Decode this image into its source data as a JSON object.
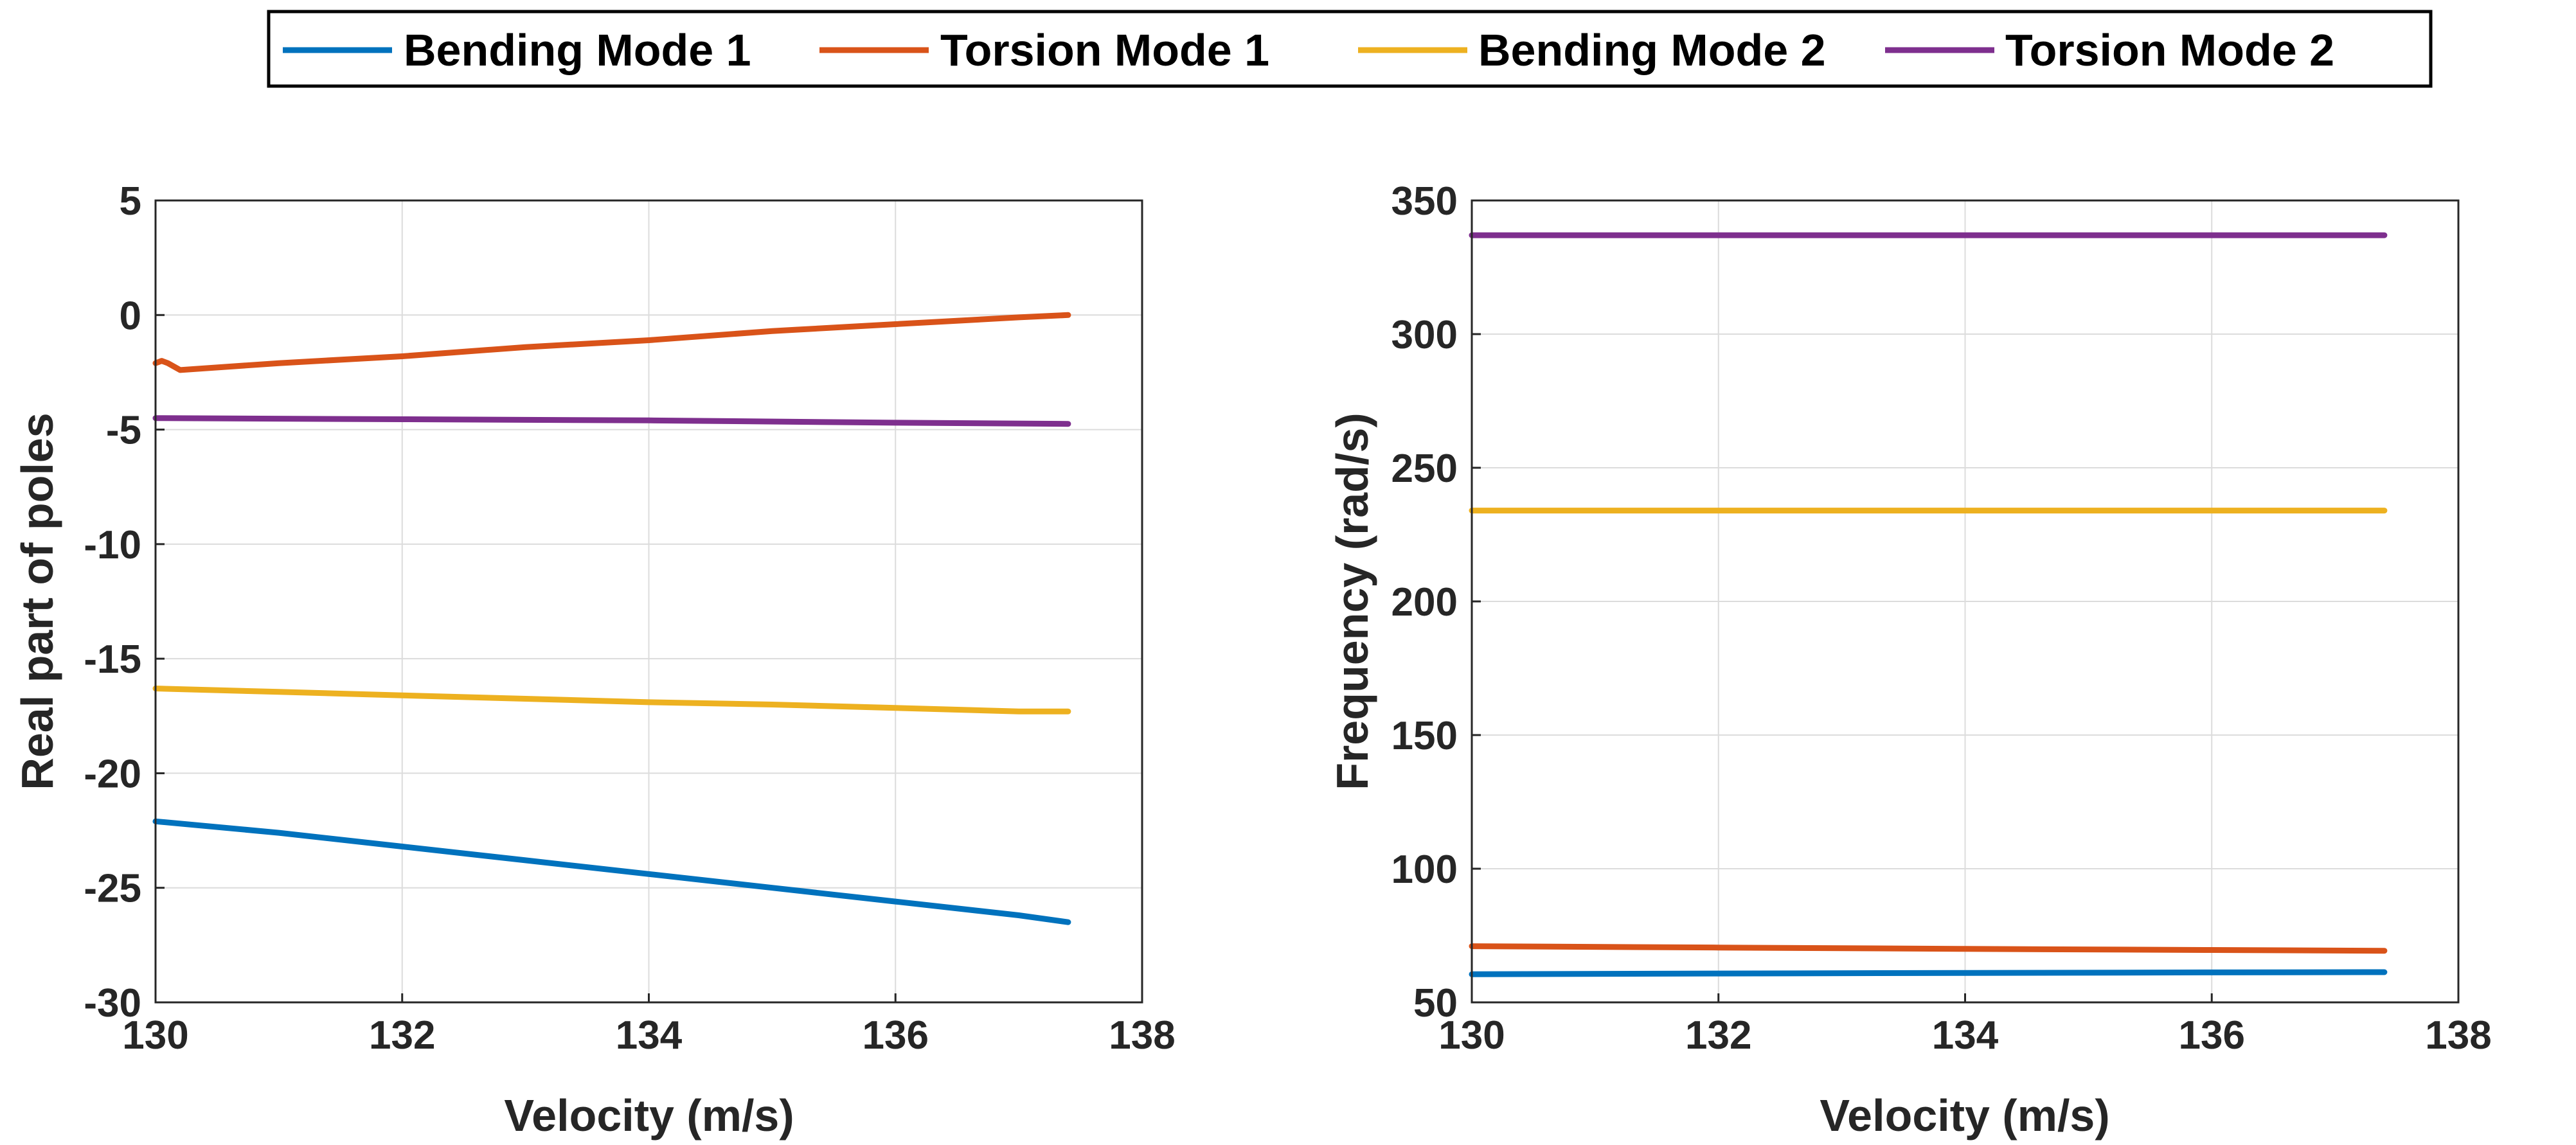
{
  "legend": {
    "entries": [
      {
        "name": "Bending Mode 1",
        "color": "#0072BD"
      },
      {
        "name": "Torsion Mode 1",
        "color": "#D95319"
      },
      {
        "name": "Bending Mode 2",
        "color": "#EDB120"
      },
      {
        "name": "Torsion Mode 2",
        "color": "#7E2F8E"
      }
    ]
  },
  "chart_data": [
    {
      "type": "line",
      "xlabel": "Velocity (m/s)",
      "ylabel": "Real part of poles",
      "xlim": [
        130,
        138
      ],
      "ylim": [
        -30,
        5
      ],
      "xticks": [
        130,
        132,
        134,
        136,
        138
      ],
      "yticks": [
        -30,
        -25,
        -20,
        -15,
        -10,
        -5,
        0,
        5
      ],
      "grid": true,
      "series": [
        {
          "name": "Bending Mode 1",
          "color": "#0072BD",
          "x": [
            130,
            131,
            132,
            133,
            134,
            135,
            136,
            137,
            137.4
          ],
          "y": [
            -22.1,
            -22.6,
            -23.2,
            -23.8,
            -24.4,
            -25.0,
            -25.6,
            -26.2,
            -26.5
          ]
        },
        {
          "name": "Torsion Mode 1",
          "color": "#D95319",
          "x": [
            130,
            130.05,
            130.1,
            130.2,
            131,
            132,
            133,
            134,
            135,
            136,
            137,
            137.4
          ],
          "y": [
            -2.1,
            -2.0,
            -2.1,
            -2.4,
            -2.1,
            -1.8,
            -1.4,
            -1.1,
            -0.7,
            -0.4,
            -0.1,
            0.0
          ]
        },
        {
          "name": "Bending Mode 2",
          "color": "#EDB120",
          "x": [
            130,
            131,
            132,
            133,
            134,
            135,
            136,
            137,
            137.4
          ],
          "y": [
            -16.3,
            -16.45,
            -16.6,
            -16.75,
            -16.9,
            -17.0,
            -17.15,
            -17.3,
            -17.3
          ]
        },
        {
          "name": "Torsion Mode 2",
          "color": "#7E2F8E",
          "x": [
            130,
            132,
            134,
            136,
            137.4
          ],
          "y": [
            -4.5,
            -4.55,
            -4.6,
            -4.7,
            -4.75
          ]
        }
      ]
    },
    {
      "type": "line",
      "xlabel": "Velocity (m/s)",
      "ylabel": "Frequency (rad/s)",
      "xlim": [
        130,
        138
      ],
      "ylim": [
        50,
        350
      ],
      "xticks": [
        130,
        132,
        134,
        136,
        138
      ],
      "yticks": [
        50,
        100,
        150,
        200,
        250,
        300,
        350
      ],
      "grid": true,
      "series": [
        {
          "name": "Bending Mode 1",
          "color": "#0072BD",
          "x": [
            130,
            132,
            134,
            136,
            137.4
          ],
          "y": [
            60.5,
            60.8,
            61.0,
            61.2,
            61.3
          ]
        },
        {
          "name": "Torsion Mode 1",
          "color": "#D95319",
          "x": [
            130,
            132,
            134,
            136,
            137.4
          ],
          "y": [
            71.0,
            70.5,
            70.0,
            69.6,
            69.3
          ]
        },
        {
          "name": "Bending Mode 2",
          "color": "#EDB120",
          "x": [
            130,
            132,
            134,
            136,
            137.4
          ],
          "y": [
            234,
            234,
            234,
            234,
            234
          ]
        },
        {
          "name": "Torsion Mode 2",
          "color": "#7E2F8E",
          "x": [
            130,
            132,
            134,
            136,
            137.4
          ],
          "y": [
            337,
            337,
            337,
            337,
            337
          ]
        }
      ]
    }
  ]
}
